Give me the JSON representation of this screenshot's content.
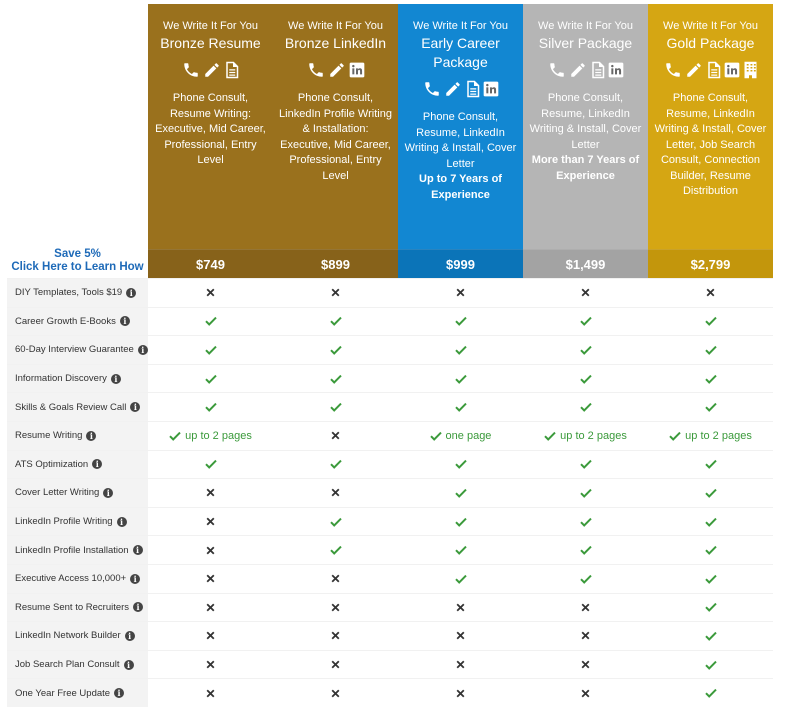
{
  "save": {
    "line1": "Save 5%",
    "line2": "Click Here to Learn How"
  },
  "packages": [
    {
      "tag": "We Write It For You",
      "name": "Bronze Resume",
      "desc": "Phone Consult, Resume Writing: Executive, Mid Career, Professional, Entry Level",
      "strong": "",
      "price": "$749",
      "icons": [
        "phone-icon",
        "pencil-icon",
        "document-icon"
      ]
    },
    {
      "tag": "We Write It For You",
      "name": "Bronze LinkedIn",
      "desc": "Phone Consult, LinkedIn Profile Writing & Installation: Executive, Mid Career, Professional, Entry Level",
      "strong": "",
      "price": "$899",
      "icons": [
        "phone-icon",
        "pencil-icon",
        "linkedin-icon"
      ]
    },
    {
      "tag": "We Write It For You",
      "name": "Early Career Package",
      "desc": "Phone Consult, Resume, LinkedIn Writing & Install, Cover Letter",
      "strong": "Up to 7 Years of Experience",
      "price": "$999",
      "icons": [
        "phone-icon",
        "pencil-icon",
        "document-icon",
        "linkedin-icon"
      ]
    },
    {
      "tag": "We Write It For You",
      "name": "Silver Package",
      "desc": "Phone Consult, Resume, LinkedIn Writing & Install, Cover Letter",
      "strong": "More than 7 Years of Experience",
      "price": "$1,499",
      "icons": [
        "phone-icon",
        "pencil-icon",
        "document-icon",
        "linkedin-icon"
      ]
    },
    {
      "tag": "We Write It For You",
      "name": "Gold Package",
      "desc": "Phone Consult, Resume, LinkedIn Writing & Install, Cover Letter, Job Search Consult, Connection Builder, Resume Distribution",
      "strong": "",
      "price": "$2,799",
      "icons": [
        "phone-icon",
        "pencil-icon",
        "document-icon",
        "linkedin-icon",
        "building-icon"
      ]
    }
  ],
  "colors": {
    "check": "#3b9a3b",
    "cross": "#333333",
    "bronze": "#9a711d",
    "blue": "#1287d2",
    "silver": "#b5b5b5",
    "gold": "#d5a613"
  },
  "features": [
    {
      "label": "DIY Templates, Tools $19",
      "cells": [
        "x",
        "x",
        "x",
        "x",
        "x"
      ]
    },
    {
      "label": "Career Growth E-Books",
      "cells": [
        "v",
        "v",
        "v",
        "v",
        "v"
      ]
    },
    {
      "label": "60-Day Interview Guarantee",
      "cells": [
        "v",
        "v",
        "v",
        "v",
        "v"
      ]
    },
    {
      "label": "Information Discovery",
      "cells": [
        "v",
        "v",
        "v",
        "v",
        "v"
      ]
    },
    {
      "label": "Skills & Goals Review Call",
      "cells": [
        "v",
        "v",
        "v",
        "v",
        "v"
      ]
    },
    {
      "label": "Resume Writing",
      "cells": [
        "v:up to 2 pages",
        "x",
        "v:one page",
        "v:up to 2 pages",
        "v:up to 2 pages"
      ]
    },
    {
      "label": "ATS Optimization",
      "cells": [
        "v",
        "v",
        "v",
        "v",
        "v"
      ]
    },
    {
      "label": "Cover Letter Writing",
      "cells": [
        "x",
        "x",
        "v",
        "v",
        "v"
      ]
    },
    {
      "label": "LinkedIn Profile Writing",
      "cells": [
        "x",
        "v",
        "v",
        "v",
        "v"
      ]
    },
    {
      "label": "LinkedIn Profile Installation",
      "cells": [
        "x",
        "v",
        "v",
        "v",
        "v"
      ]
    },
    {
      "label": "Executive Access 10,000+",
      "cells": [
        "x",
        "x",
        "v",
        "v",
        "v"
      ]
    },
    {
      "label": "Resume Sent to Recruiters",
      "cells": [
        "x",
        "x",
        "x",
        "x",
        "v"
      ]
    },
    {
      "label": "LinkedIn Network Builder",
      "cells": [
        "x",
        "x",
        "x",
        "x",
        "v"
      ]
    },
    {
      "label": "Job Search Plan Consult",
      "cells": [
        "x",
        "x",
        "x",
        "x",
        "v"
      ]
    },
    {
      "label": "One Year Free Update",
      "cells": [
        "x",
        "x",
        "x",
        "x",
        "v"
      ]
    }
  ]
}
